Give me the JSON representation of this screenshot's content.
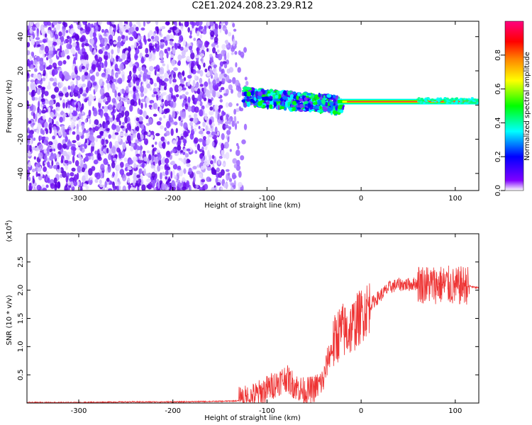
{
  "title": "C2E1.2024.208.23.29.R12",
  "chart_data": [
    {
      "type": "heatmap",
      "title": "C2E1.2024.208.23.29.R12",
      "xlabel": "Height of straight line (km)",
      "ylabel": "Frequency (Hz)",
      "xlim": [
        -355,
        125
      ],
      "ylim": [
        -50,
        49
      ],
      "x_ticks": [
        -300,
        -200,
        -100,
        0,
        100
      ],
      "y_ticks": [
        -40,
        -20,
        0,
        20,
        40
      ],
      "colorbar": {
        "label": "Normalized spectral amplitude",
        "range": [
          0,
          1
        ],
        "ticks": [
          0.0,
          0.2,
          0.4,
          0.6,
          0.8
        ],
        "colors": [
          "#ffffff",
          "#8000ff",
          "#0000ff",
          "#00ffff",
          "#00ff00",
          "#ffff00",
          "#ff8000",
          "#ff0000",
          "#ff0080"
        ]
      },
      "features": {
        "noise_region_x": [
          -355,
          -125
        ],
        "noise_frequency_range": [
          -50,
          49
        ],
        "signal_line_x": [
          -125,
          125
        ],
        "signal_frequency_start": 5,
        "signal_frequency_end": 2,
        "signal_peak_amplitude": 0.9
      }
    },
    {
      "type": "line",
      "xlabel": "Height of straight line (km)",
      "ylabel": "SNR (10 * v/v)",
      "y_multiplier": "(x10^4)",
      "xlim": [
        -355,
        125
      ],
      "ylim": [
        0,
        3.0
      ],
      "x_ticks": [
        -300,
        -200,
        -100,
        0,
        100
      ],
      "y_ticks": [
        0.5,
        1.0,
        1.5,
        2.0,
        2.5
      ],
      "color": "#ee3333",
      "series": [
        {
          "x": [
            -355,
            -300,
            -250,
            -200,
            -150,
            -130,
            -120,
            -110,
            -100,
            -90,
            -80,
            -70,
            -60,
            -50,
            -40,
            -35,
            -30,
            -25,
            -20,
            -15,
            -10,
            -5,
            0,
            10,
            20,
            30,
            40,
            50,
            60,
            70,
            80,
            90,
            100,
            110,
            120,
            125
          ],
          "values": [
            0.01,
            0.01,
            0.02,
            0.02,
            0.03,
            0.04,
            0.08,
            0.15,
            0.25,
            0.35,
            0.45,
            0.3,
            0.2,
            0.25,
            0.4,
            0.8,
            1.0,
            1.2,
            1.3,
            1.25,
            1.35,
            1.45,
            1.55,
            1.75,
            1.9,
            2.05,
            2.1,
            2.1,
            2.12,
            2.1,
            2.1,
            2.1,
            2.05,
            2.1,
            2.05,
            2.04
          ]
        }
      ]
    }
  ]
}
